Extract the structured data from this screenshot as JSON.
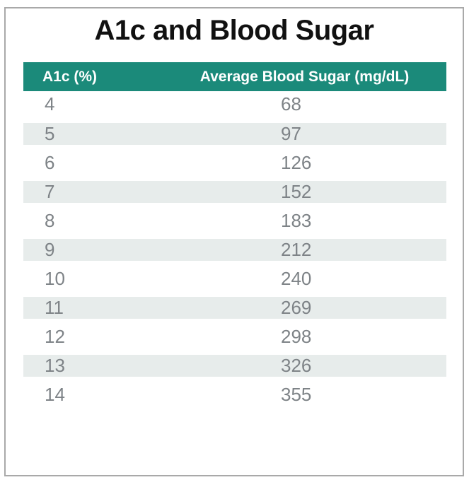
{
  "title": "A1c and Blood Sugar",
  "table": {
    "headers": [
      "A1c (%)",
      "Average Blood Sugar (mg/dL)"
    ],
    "rows": [
      [
        "4",
        "68"
      ],
      [
        "5",
        "97"
      ],
      [
        "6",
        "126"
      ],
      [
        "7",
        "152"
      ],
      [
        "8",
        "183"
      ],
      [
        "9",
        "212"
      ],
      [
        "10",
        "240"
      ],
      [
        "11",
        "269"
      ],
      [
        "12",
        "298"
      ],
      [
        "13",
        "326"
      ],
      [
        "14",
        "355"
      ]
    ]
  },
  "chart_data": {
    "type": "table",
    "title": "A1c and Blood Sugar",
    "columns": [
      "A1c (%)",
      "Average Blood Sugar (mg/dL)"
    ],
    "a1c_percent": [
      4,
      5,
      6,
      7,
      8,
      9,
      10,
      11,
      12,
      13,
      14
    ],
    "avg_blood_sugar_mg_dl": [
      68,
      97,
      126,
      152,
      183,
      212,
      240,
      269,
      298,
      326,
      355
    ],
    "layout": {
      "header_style": "solid teal bar, white bold text",
      "row_striping": "white / light gray-green alternating starting white",
      "grid": "off"
    }
  },
  "colors": {
    "header_bg": "#1b8a7a",
    "header_text": "#ffffff",
    "row_alt_bg": "#e7eceb",
    "row_text": "#7e8387",
    "title_text": "#111111",
    "frame_border": "#a9a9a9"
  }
}
